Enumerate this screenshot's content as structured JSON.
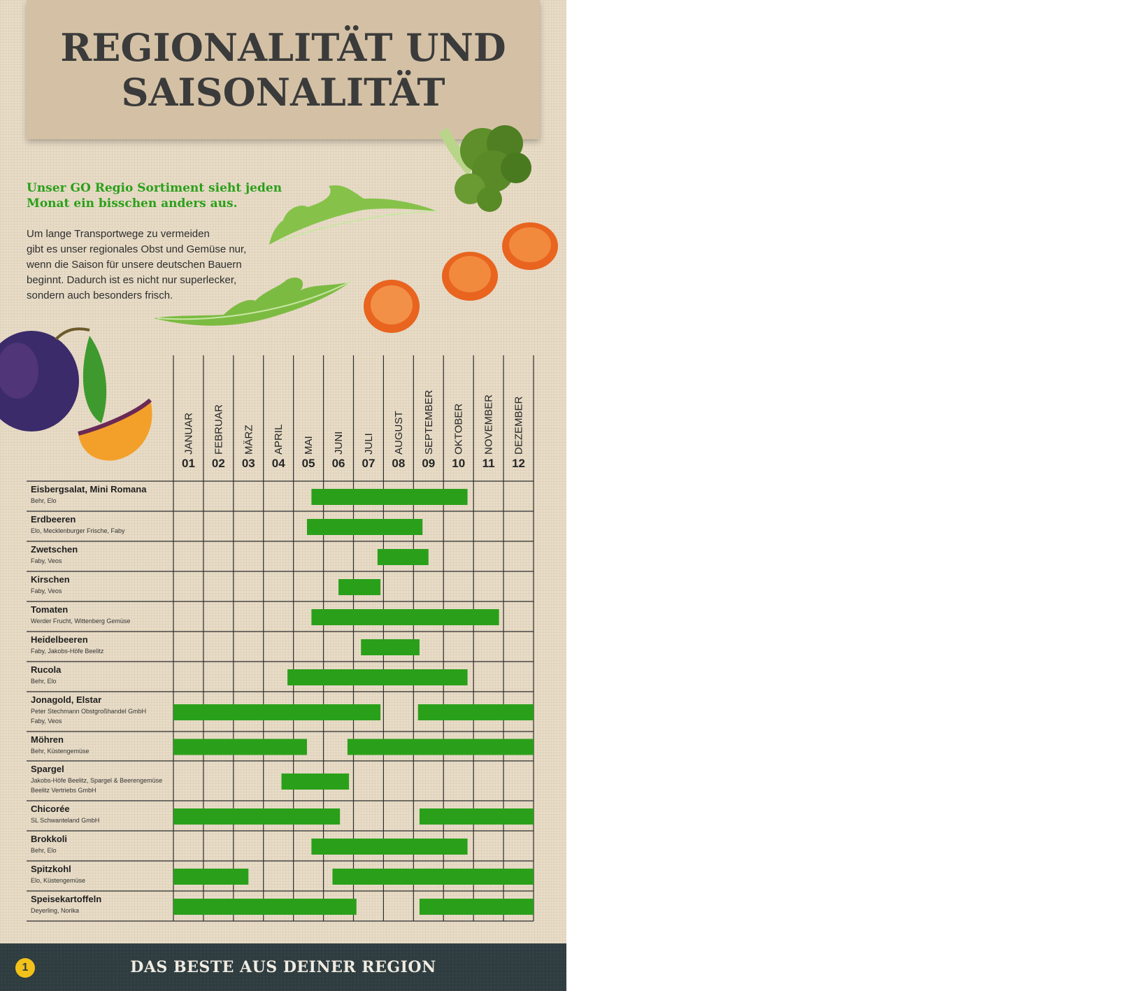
{
  "colors": {
    "bar": "#2aa01a",
    "title": "#3b3b3b",
    "headline": "#2aa01a",
    "footer_bg": "#2f3d40",
    "footer_text": "#f1ece2",
    "paper": "#e8dcc7",
    "header_card": "#d4c1a5"
  },
  "header": {
    "title_line1": "REGIONALITÄT UND",
    "title_line2": "SAISONALITÄT"
  },
  "intro": {
    "headline_line1": "Unser GO Regio Sortiment sieht jeden",
    "headline_line2": "Monat ein bisschen anders aus.",
    "body_lines": [
      "Um lange Transportwege zu vermeiden",
      "gibt es unser regionales Obst und Gemüse nur,",
      "wenn die Saison für unsere deutschen Bauern",
      "beginnt. Dadurch ist es nicht nur superlecker,",
      "sondern auch besonders frisch."
    ]
  },
  "decorations": [
    "plum-image",
    "rocket-leaf-image",
    "carrot-slice-image",
    "broccoli-image"
  ],
  "chart_data": {
    "type": "gantt",
    "months": [
      {
        "num": "01",
        "name": "JANUAR"
      },
      {
        "num": "02",
        "name": "FEBRUAR"
      },
      {
        "num": "03",
        "name": "MÄRZ"
      },
      {
        "num": "04",
        "name": "APRIL"
      },
      {
        "num": "05",
        "name": "MAI"
      },
      {
        "num": "06",
        "name": "JUNI"
      },
      {
        "num": "07",
        "name": "JULI"
      },
      {
        "num": "08",
        "name": "AUGUST"
      },
      {
        "num": "09",
        "name": "SEPTEMBER"
      },
      {
        "num": "10",
        "name": "OKTOBER"
      },
      {
        "num": "11",
        "name": "NOVEMBER"
      },
      {
        "num": "12",
        "name": "DEZEMBER"
      }
    ],
    "rows": [
      {
        "name": "Eisbergsalat, Mini Romana",
        "producers": [
          "Behr, Elo"
        ],
        "periods": [
          [
            4.6,
            9.8
          ]
        ]
      },
      {
        "name": "Erdbeeren",
        "producers": [
          "Elo, Mecklenburger Frische, Faby"
        ],
        "periods": [
          [
            4.45,
            8.3
          ]
        ]
      },
      {
        "name": "Zwetschen",
        "producers": [
          "Faby, Veos"
        ],
        "periods": [
          [
            6.8,
            8.5
          ]
        ]
      },
      {
        "name": "Kirschen",
        "producers": [
          "Faby, Veos"
        ],
        "periods": [
          [
            5.5,
            6.9
          ]
        ]
      },
      {
        "name": "Tomaten",
        "producers": [
          "Werder Frucht, Wittenberg Gemüse"
        ],
        "periods": [
          [
            4.6,
            10.85
          ]
        ]
      },
      {
        "name": "Heidelbeeren",
        "producers": [
          "Faby, Jakobs-Höfe Beelitz"
        ],
        "periods": [
          [
            6.25,
            8.2
          ]
        ]
      },
      {
        "name": "Rucola",
        "producers": [
          "Behr, Elo"
        ],
        "periods": [
          [
            3.8,
            9.8
          ]
        ]
      },
      {
        "name": "Jonagold, Elstar",
        "producers": [
          "Peter Stechmann Obstgroßhandel GmbH",
          "Faby, Veos"
        ],
        "periods": [
          [
            0,
            6.9
          ],
          [
            8.15,
            12
          ]
        ]
      },
      {
        "name": "Möhren",
        "producers": [
          "Behr, Küstengemüse"
        ],
        "periods": [
          [
            0,
            4.45
          ],
          [
            5.8,
            12
          ]
        ]
      },
      {
        "name": "Spargel",
        "producers": [
          "Jakobs-Höfe Beelitz, Spargel & Beerengemüse",
          "Beelitz Vertriebs GmbH"
        ],
        "periods": [
          [
            3.6,
            5.85
          ]
        ]
      },
      {
        "name": "Chicorée",
        "producers": [
          "SL Schwanteland GmbH"
        ],
        "periods": [
          [
            0,
            5.55
          ],
          [
            8.2,
            12
          ]
        ]
      },
      {
        "name": "Brokkoli",
        "producers": [
          "Behr, Elo"
        ],
        "periods": [
          [
            4.6,
            9.8
          ]
        ]
      },
      {
        "name": "Spitzkohl",
        "producers": [
          "Elo, Küstengemüse"
        ],
        "periods": [
          [
            0,
            2.5
          ],
          [
            5.3,
            12
          ]
        ]
      },
      {
        "name": "Speisekartoffeln",
        "producers": [
          "Deyerling, Norika"
        ],
        "periods": [
          [
            0,
            6.1
          ],
          [
            8.2,
            12
          ]
        ]
      }
    ]
  },
  "footer": {
    "text": "DAS BESTE AUS DEINER REGION",
    "logo": "1"
  }
}
